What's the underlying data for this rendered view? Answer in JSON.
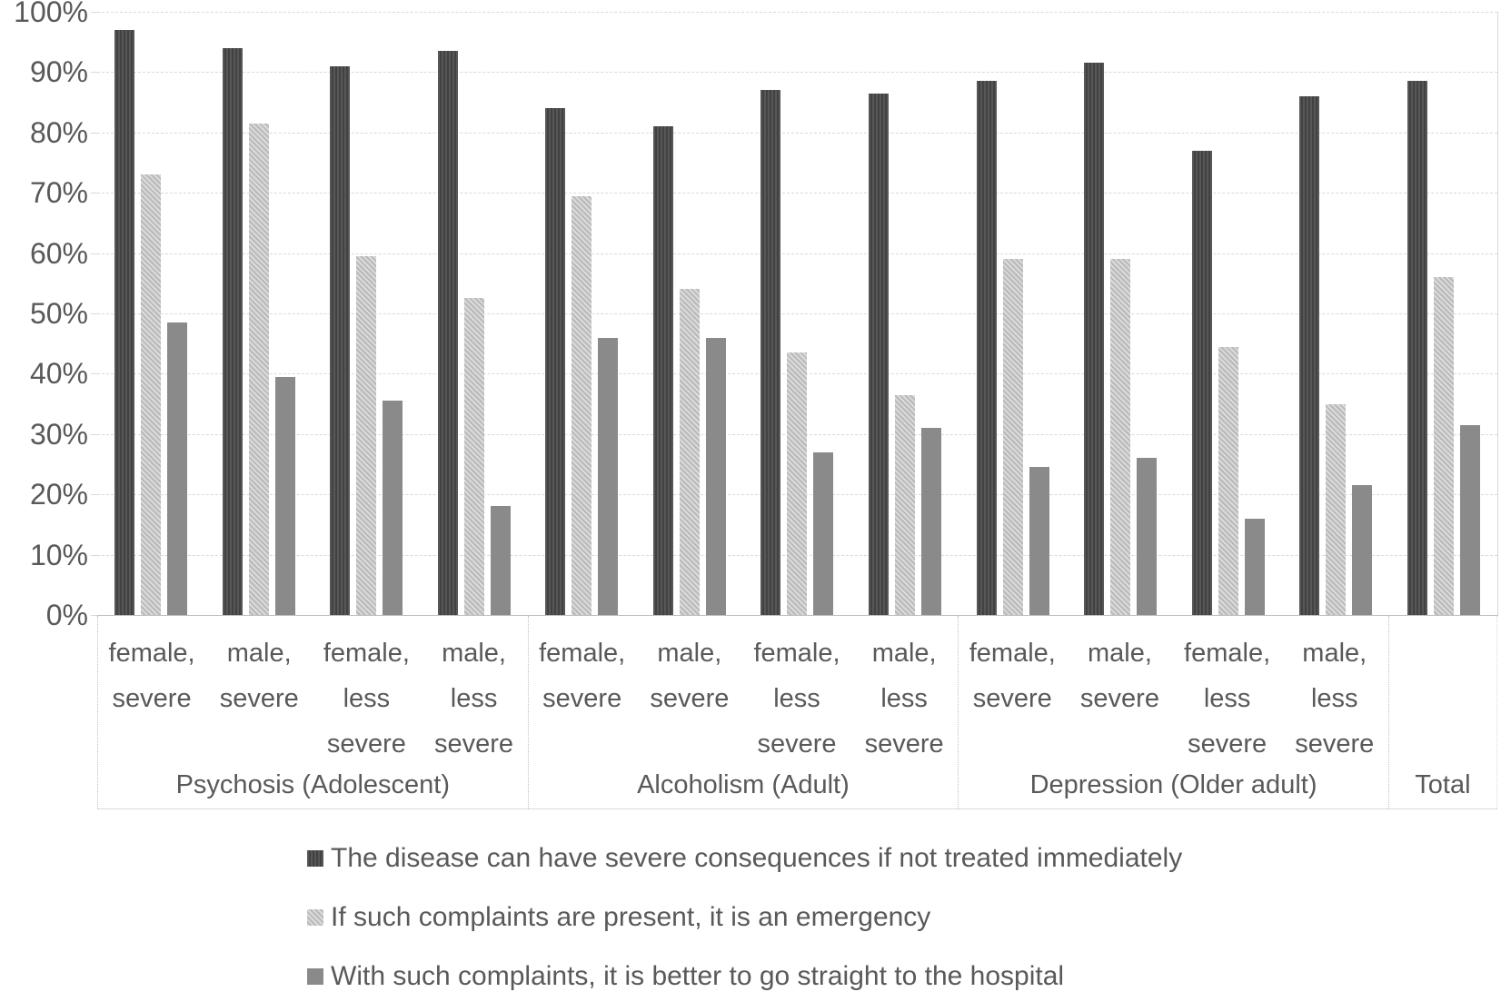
{
  "chart_data": {
    "type": "bar",
    "title": "",
    "unit": "percent",
    "legend_position": "bottom",
    "y_axis": {
      "min": 0,
      "max": 100,
      "grid": true,
      "ticks": [
        "0%",
        "10%",
        "20%",
        "30%",
        "40%",
        "50%",
        "60%",
        "70%",
        "80%",
        "90%",
        "100%"
      ]
    },
    "series": [
      {
        "name": "The disease can have severe consequences if not treated immediately",
        "color": "#4a4a4a",
        "pattern": "vertical-stripes"
      },
      {
        "name": "If such complaints are present, it is an emergency",
        "color": "#c3c3c3",
        "pattern": "speckled"
      },
      {
        "name": "With such complaints, it is better to go straight to the hospital",
        "color": "#8a8a8a",
        "pattern": "solid"
      }
    ],
    "groups": [
      {
        "label": "Psychosis (Adolescent)",
        "categories": [
          {
            "label": "female, severe",
            "values": [
              97,
              73,
              48.5
            ]
          },
          {
            "label": "male, severe",
            "values": [
              94,
              81.5,
              39.5
            ]
          },
          {
            "label": "female, less severe",
            "values": [
              91,
              59.5,
              35.5
            ]
          },
          {
            "label": "male, less severe",
            "values": [
              93.5,
              52.5,
              18
            ]
          }
        ]
      },
      {
        "label": "Alcoholism (Adult)",
        "categories": [
          {
            "label": "female, severe",
            "values": [
              84,
              69.5,
              46
            ]
          },
          {
            "label": "male, severe",
            "values": [
              81,
              54,
              46
            ]
          },
          {
            "label": "female, less severe",
            "values": [
              87,
              43.5,
              27
            ]
          },
          {
            "label": "male, less severe",
            "values": [
              86.5,
              36.5,
              31
            ]
          }
        ]
      },
      {
        "label": "Depression (Older adult)",
        "categories": [
          {
            "label": "female, severe",
            "values": [
              88.5,
              59,
              24.5
            ]
          },
          {
            "label": "male, severe",
            "values": [
              91.5,
              59,
              26
            ]
          },
          {
            "label": "female, less severe",
            "values": [
              77,
              44.5,
              16
            ]
          },
          {
            "label": "male, less severe",
            "values": [
              86,
              35,
              21.5
            ]
          }
        ]
      },
      {
        "label": "Total",
        "categories": [
          {
            "label": "",
            "values": [
              88.5,
              56,
              31.5
            ]
          }
        ]
      }
    ],
    "colors": {
      "text": "#595959",
      "gridline": "#d9d9d9",
      "axis_line": "#bfbfbf",
      "background": "#ffffff"
    }
  }
}
